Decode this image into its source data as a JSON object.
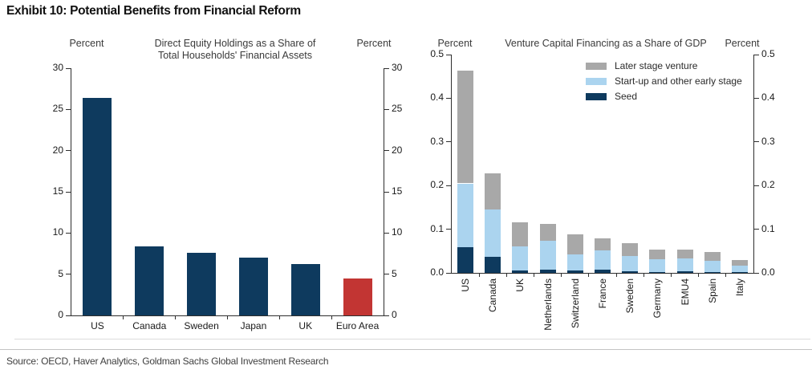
{
  "title": "Exhibit 10: Potential Benefits from Financial Reform",
  "source": "Source: OECD, Haver Analytics, Goldman Sachs Global Investment Research",
  "colors": {
    "navy": "#0e3a5e",
    "red": "#c23533",
    "light_blue": "#abd4ef",
    "gray": "#a8a8a8",
    "axis": "#2e2e2e"
  },
  "chart_data": [
    {
      "type": "bar",
      "title": "Direct Equity Holdings as a Share of Total Households' Financial Assets",
      "title_lines": [
        "Direct Equity Holdings as a Share of",
        "Total Households' Financial Assets"
      ],
      "left_axis_label": "Percent",
      "right_axis_label": "Percent",
      "categories": [
        "US",
        "Canada",
        "Sweden",
        "Japan",
        "UK",
        "Euro Area"
      ],
      "values": [
        26.4,
        8.4,
        7.6,
        7.0,
        6.2,
        4.5
      ],
      "bar_colors": [
        "#0e3a5e",
        "#0e3a5e",
        "#0e3a5e",
        "#0e3a5e",
        "#0e3a5e",
        "#c23533"
      ],
      "ylim": [
        0,
        30
      ],
      "yticks": [
        0,
        5,
        10,
        15,
        20,
        25,
        30
      ],
      "grid": false,
      "legend_position": "none"
    },
    {
      "type": "stacked_bar",
      "title": "Venture Capital Financing as a Share of GDP",
      "left_axis_label": "Percent",
      "right_axis_label": "Percent",
      "categories": [
        "US",
        "Canada",
        "UK",
        "Netherlands",
        "Switzerland",
        "France",
        "Sweden",
        "Germany",
        "EMU4",
        "Spain",
        "Italy"
      ],
      "series": [
        {
          "name": "Seed",
          "color": "#0e3a5e",
          "values": [
            0.058,
            0.037,
            0.006,
            0.008,
            0.005,
            0.007,
            0.004,
            0.002,
            0.004,
            0.002,
            0.001
          ]
        },
        {
          "name": "Start-up and other early stage",
          "color": "#abd4ef",
          "values": [
            0.147,
            0.109,
            0.054,
            0.065,
            0.037,
            0.044,
            0.035,
            0.029,
            0.029,
            0.026,
            0.015
          ]
        },
        {
          "name": "Later stage venture",
          "color": "#a8a8a8",
          "values": [
            0.259,
            0.082,
            0.055,
            0.039,
            0.046,
            0.029,
            0.029,
            0.023,
            0.021,
            0.019,
            0.014
          ]
        }
      ],
      "legend": [
        "Later stage venture",
        "Start-up and other early stage",
        "Seed"
      ],
      "ylim": [
        0,
        0.5
      ],
      "yticks": [
        "0.0",
        "0.1",
        "0.2",
        "0.3",
        "0.4",
        "0.5"
      ],
      "grid": false,
      "legend_position": "upper right inside"
    }
  ]
}
